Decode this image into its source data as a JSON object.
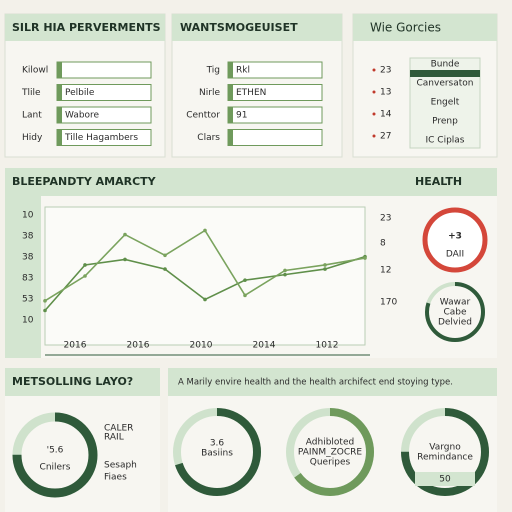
{
  "form_panels": [
    {
      "title": "SILR HIA PERVERMENTS",
      "rows": [
        {
          "label": "Kilowl"
        },
        {
          "label": "Tlile",
          "value": "Pelbile"
        },
        {
          "label": "Lant",
          "value": "Wabore"
        },
        {
          "label": "Hidy",
          "value": "Tille Hagambers"
        }
      ]
    },
    {
      "title": "WANTSMOGEUISET",
      "rows": [
        {
          "label": "Tig",
          "value": "Rkl"
        },
        {
          "label": "Nirle",
          "value": "ETHEN"
        },
        {
          "label": "Centtor",
          "value": "91"
        },
        {
          "label": "Clars"
        }
      ]
    }
  ],
  "list_panel": {
    "title": "Wie Gorcies",
    "bullets": [
      "23",
      "13",
      "14",
      "27"
    ],
    "tags": [
      "Bunde",
      "Canversaton",
      "Engelt",
      "Prenp",
      "IC Ciplas"
    ]
  },
  "chart_data": {
    "type": "line",
    "title": "BLEEPANDTY AMARCTY",
    "y_labels": [
      "10",
      "38",
      "38",
      "83",
      "53",
      "10"
    ],
    "right_labels": [
      "23",
      "8",
      "12",
      "170"
    ],
    "x_labels": [
      "2016",
      "2016",
      "2010",
      "2014",
      "1012"
    ],
    "x": [
      0,
      1,
      2,
      3,
      4,
      5,
      6,
      7,
      8
    ],
    "xlim": [
      0,
      8
    ],
    "ylim": [
      0,
      100
    ],
    "series": [
      {
        "color": "#5f8f4a",
        "values": [
          25,
          58,
          62,
          55,
          33,
          47,
          51,
          55,
          64
        ]
      },
      {
        "color": "#7aa35e",
        "values": [
          32,
          50,
          80,
          65,
          83,
          36,
          54,
          58,
          63
        ]
      }
    ]
  },
  "health": {
    "title": "HEALTH",
    "badge": "+3",
    "badge_sub": "DAII",
    "ring_lines": [
      "Wawar",
      "Cabe",
      "Delvied"
    ],
    "progress": 80
  },
  "bottom_left": {
    "title": "METSOLLING LAYO?",
    "lines": [
      "'5.6",
      "Cnilers"
    ],
    "progress": 75,
    "side_red": [
      "CALER",
      "RAIL"
    ],
    "side": [
      "Sesaph",
      "Fiaes"
    ]
  },
  "bottom_right": {
    "heading": "A Marily envire health and the health archifect end stoying type.",
    "donuts": [
      {
        "lines": [
          "3.6",
          "Basiins"
        ],
        "progress": 70
      },
      {
        "lines": [
          "Adhibloted",
          "PAINM_ZOCRE",
          "Queripes"
        ],
        "progress": 65
      },
      {
        "lines": [
          "Vargno",
          "Remindance"
        ],
        "progress": 75,
        "badge": "50"
      }
    ]
  }
}
